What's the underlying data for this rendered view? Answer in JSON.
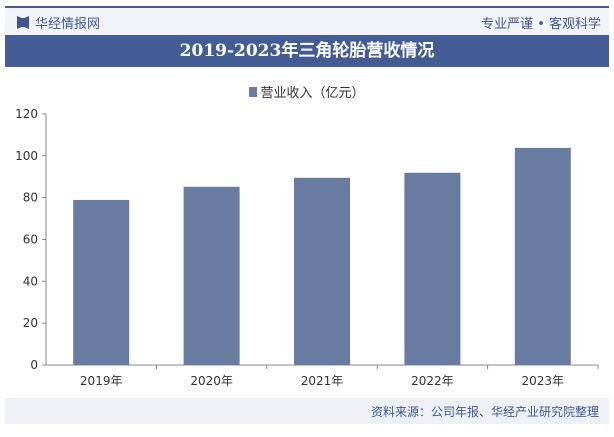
{
  "header": {
    "logo": "华经情报网",
    "slogan": "专业严谨 • 客观科学"
  },
  "footer": {
    "source": "资料来源：公司年报、华经产业研究院整理"
  },
  "colors": {
    "bar": "#687ca2",
    "accent": "#445c94"
  },
  "chart_data": {
    "type": "bar",
    "title": "2019-2023年三角轮胎营收情况",
    "legend": "营业收入（亿元）",
    "categories": [
      "2019年",
      "2020年",
      "2021年",
      "2022年",
      "2023年"
    ],
    "values": [
      78.9,
      85.2,
      89.5,
      91.9,
      103.8
    ],
    "yticks": [
      "0",
      "20",
      "40",
      "60",
      "80",
      "100",
      "120"
    ],
    "ylim": [
      0,
      120
    ],
    "xlabel": "",
    "ylabel": "",
    "legend_position": "top-center"
  }
}
